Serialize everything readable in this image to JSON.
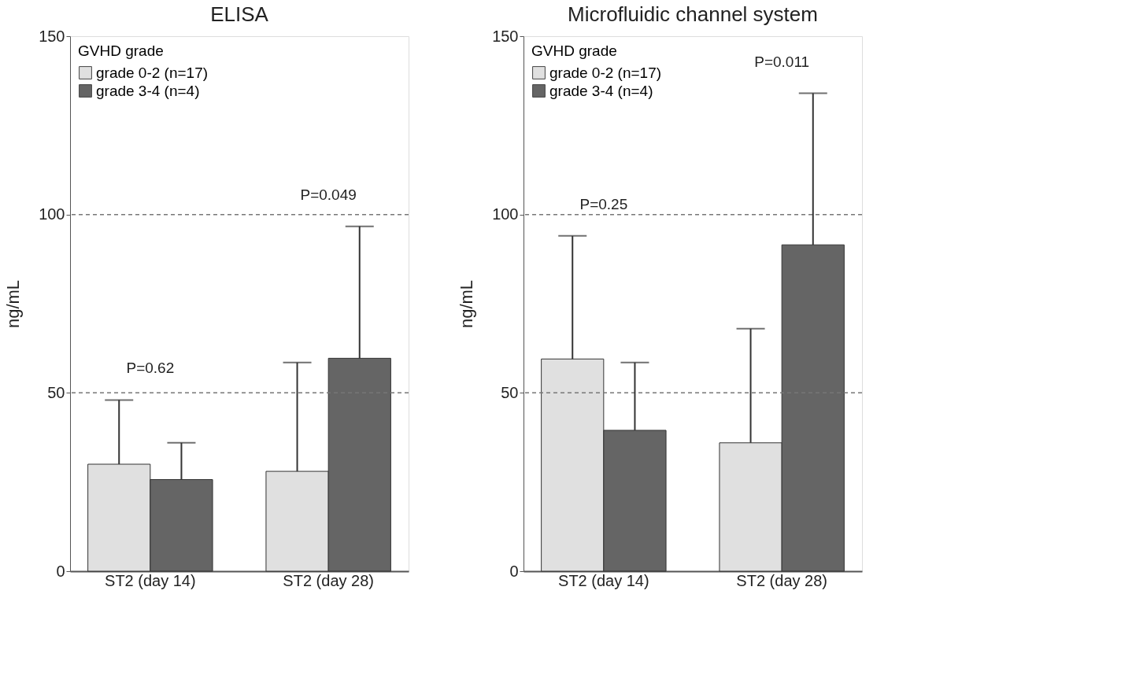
{
  "chart_data": [
    {
      "type": "bar",
      "title": "ELISA",
      "ylabel": "ng/mL",
      "legend_title": "GVHD grade",
      "legend": "top left",
      "categories": [
        "ST2 (day 14)",
        "ST2 (day 28)"
      ],
      "series": [
        {
          "name": "grade 0-2 (n=17)",
          "color": "#e0e0e0",
          "values": [
            30,
            28
          ],
          "errors": [
            [
              30,
              48
            ],
            [
              28,
              58.5
            ]
          ]
        },
        {
          "name": "grade 3-4 (n=4)",
          "color": "#656565",
          "values": [
            25.7,
            59.7
          ],
          "errors": [
            [
              25.7,
              36
            ],
            [
              59.7,
              96.7
            ]
          ]
        }
      ],
      "ylim": [
        0,
        150
      ],
      "yticks": [
        0,
        50,
        100,
        150
      ],
      "ref_lines": [
        {
          "axis": "y",
          "value": 50,
          "label": null,
          "line_style": "dashed"
        },
        {
          "axis": "y",
          "value": 100,
          "label": null,
          "line_style": "dashed"
        }
      ],
      "annotations": [
        "P=0.62",
        "P=0.049"
      ]
    },
    {
      "type": "bar",
      "title": "Microfluidic channel system",
      "ylabel": "ng/mL",
      "legend_title": "GVHD grade",
      "legend": "top left",
      "categories": [
        "ST2 (day 14)",
        "ST2 (day 28)"
      ],
      "series": [
        {
          "name": "grade 0-2 (n=17)",
          "color": "#e0e0e0",
          "values": [
            59.5,
            36
          ],
          "errors": [
            [
              59.5,
              94
            ],
            [
              36,
              68
            ]
          ]
        },
        {
          "name": "grade 3-4 (n=4)",
          "color": "#656565",
          "values": [
            39.5,
            91.5
          ],
          "errors": [
            [
              39.5,
              58.5
            ],
            [
              91.5,
              134
            ]
          ]
        }
      ],
      "ylim": [
        0,
        150
      ],
      "yticks": [
        0,
        50,
        100,
        150
      ],
      "ref_lines": [
        {
          "axis": "y",
          "value": 50,
          "label": null,
          "line_style": "dashed"
        },
        {
          "axis": "y",
          "value": 100,
          "label": null,
          "line_style": "dashed"
        }
      ],
      "annotations": [
        "P=0.25",
        "P=0.011"
      ]
    }
  ]
}
